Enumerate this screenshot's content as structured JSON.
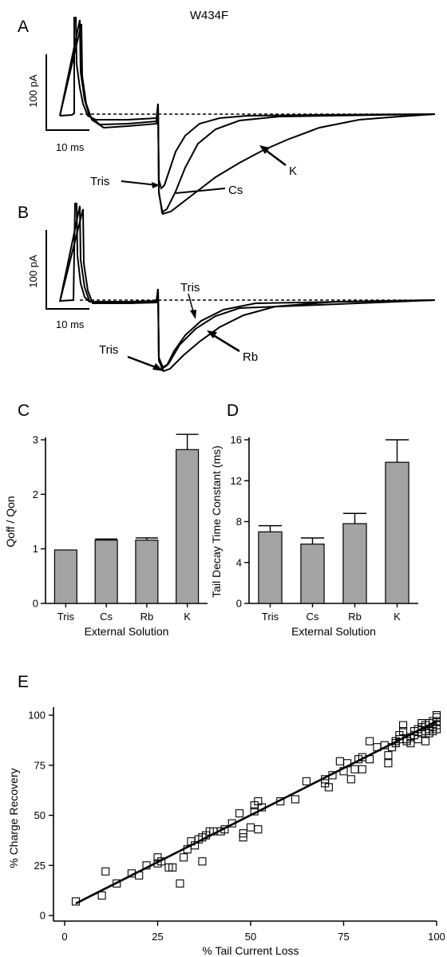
{
  "figure_title": "W434F",
  "panel_letters": [
    "A",
    "B",
    "C",
    "D",
    "E"
  ],
  "colors": {
    "bar_fill": "#a3a3a3",
    "ink": "#000000"
  },
  "trace_panels": [
    {
      "letter": "A",
      "scale_y": "100 pA",
      "scale_x": "10 ms",
      "annotations": [
        {
          "id": "tris",
          "label": "Tris"
        },
        {
          "id": "cs",
          "label": "Cs"
        },
        {
          "id": "k",
          "label": "K"
        }
      ]
    },
    {
      "letter": "B",
      "scale_y": "100 pA",
      "scale_x": "10 ms",
      "annotations": [
        {
          "id": "tris-top",
          "label": "Tris"
        },
        {
          "id": "tris-bottom",
          "label": "Tris"
        },
        {
          "id": "rb",
          "label": "Rb"
        }
      ]
    }
  ],
  "chart_data": [
    {
      "panel": "C",
      "type": "bar",
      "categories": [
        "Tris",
        "Cs",
        "Rb",
        "K"
      ],
      "values": [
        0.98,
        1.16,
        1.16,
        2.82
      ],
      "errors": [
        0.0,
        0.02,
        0.04,
        0.28
      ],
      "xlabel": "External Solution",
      "ylabel": "Qoff / Qon",
      "ylim": [
        0,
        3
      ],
      "yticks": [
        0,
        1,
        2,
        3
      ]
    },
    {
      "panel": "D",
      "type": "bar",
      "categories": [
        "Tris",
        "Cs",
        "Rb",
        "K"
      ],
      "values": [
        7.0,
        5.8,
        7.8,
        13.8
      ],
      "errors": [
        0.6,
        0.6,
        1.0,
        2.2
      ],
      "xlabel": "External Solution",
      "ylabel": "Tail Decay Time Constant (ms)",
      "ylim": [
        0,
        16
      ],
      "yticks": [
        0,
        4,
        8,
        12,
        16
      ]
    },
    {
      "panel": "E",
      "type": "scatter",
      "xlabel": "% Tail Current Loss",
      "ylabel": "% Charge Recovery",
      "xlim": [
        0,
        100
      ],
      "ylim": [
        0,
        100
      ],
      "xticks": [
        0,
        25,
        50,
        75,
        100
      ],
      "yticks": [
        0,
        25,
        50,
        75,
        100
      ],
      "fit_line": {
        "x": [
          3,
          100
        ],
        "y": [
          6,
          97
        ]
      },
      "points": [
        [
          3,
          7
        ],
        [
          10,
          10
        ],
        [
          11,
          22
        ],
        [
          14,
          16
        ],
        [
          18,
          21
        ],
        [
          20,
          20
        ],
        [
          22,
          25
        ],
        [
          25,
          26
        ],
        [
          25,
          29
        ],
        [
          26,
          27
        ],
        [
          28,
          24
        ],
        [
          29,
          24
        ],
        [
          31,
          16
        ],
        [
          32,
          29
        ],
        [
          33,
          33
        ],
        [
          34,
          37
        ],
        [
          35,
          35
        ],
        [
          36,
          38
        ],
        [
          37,
          39
        ],
        [
          37,
          27
        ],
        [
          38,
          40
        ],
        [
          39,
          42
        ],
        [
          40,
          42
        ],
        [
          42,
          42
        ],
        [
          43,
          43
        ],
        [
          45,
          46
        ],
        [
          47,
          51
        ],
        [
          48,
          39
        ],
        [
          48,
          41
        ],
        [
          50,
          44
        ],
        [
          51,
          55
        ],
        [
          51,
          52
        ],
        [
          52,
          43
        ],
        [
          52,
          57
        ],
        [
          53,
          54
        ],
        [
          58,
          57
        ],
        [
          62,
          58
        ],
        [
          65,
          67
        ],
        [
          70,
          66
        ],
        [
          70,
          68
        ],
        [
          71,
          64
        ],
        [
          72,
          70
        ],
        [
          74,
          77
        ],
        [
          75,
          72
        ],
        [
          76,
          76
        ],
        [
          77,
          68
        ],
        [
          78,
          73
        ],
        [
          79,
          78
        ],
        [
          80,
          79
        ],
        [
          80,
          73
        ],
        [
          82,
          87
        ],
        [
          82,
          78
        ],
        [
          84,
          84
        ],
        [
          86,
          85
        ],
        [
          87,
          80
        ],
        [
          87,
          76
        ],
        [
          88,
          84
        ],
        [
          89,
          87
        ],
        [
          89,
          86
        ],
        [
          90,
          90
        ],
        [
          90,
          88
        ],
        [
          91,
          95
        ],
        [
          91,
          92
        ],
        [
          92,
          88
        ],
        [
          92,
          87
        ],
        [
          93,
          89
        ],
        [
          93,
          86
        ],
        [
          94,
          92
        ],
        [
          94,
          90
        ],
        [
          95,
          93
        ],
        [
          95,
          88
        ],
        [
          96,
          94
        ],
        [
          96,
          91
        ],
        [
          96,
          96
        ],
        [
          97,
          95
        ],
        [
          97,
          92
        ],
        [
          97,
          87
        ],
        [
          98,
          96
        ],
        [
          98,
          93
        ],
        [
          98,
          91
        ],
        [
          99,
          94
        ],
        [
          99,
          92
        ],
        [
          99,
          97
        ],
        [
          100,
          99
        ],
        [
          100,
          97
        ],
        [
          100,
          95
        ],
        [
          100,
          93
        ],
        [
          100,
          100
        ]
      ]
    }
  ]
}
